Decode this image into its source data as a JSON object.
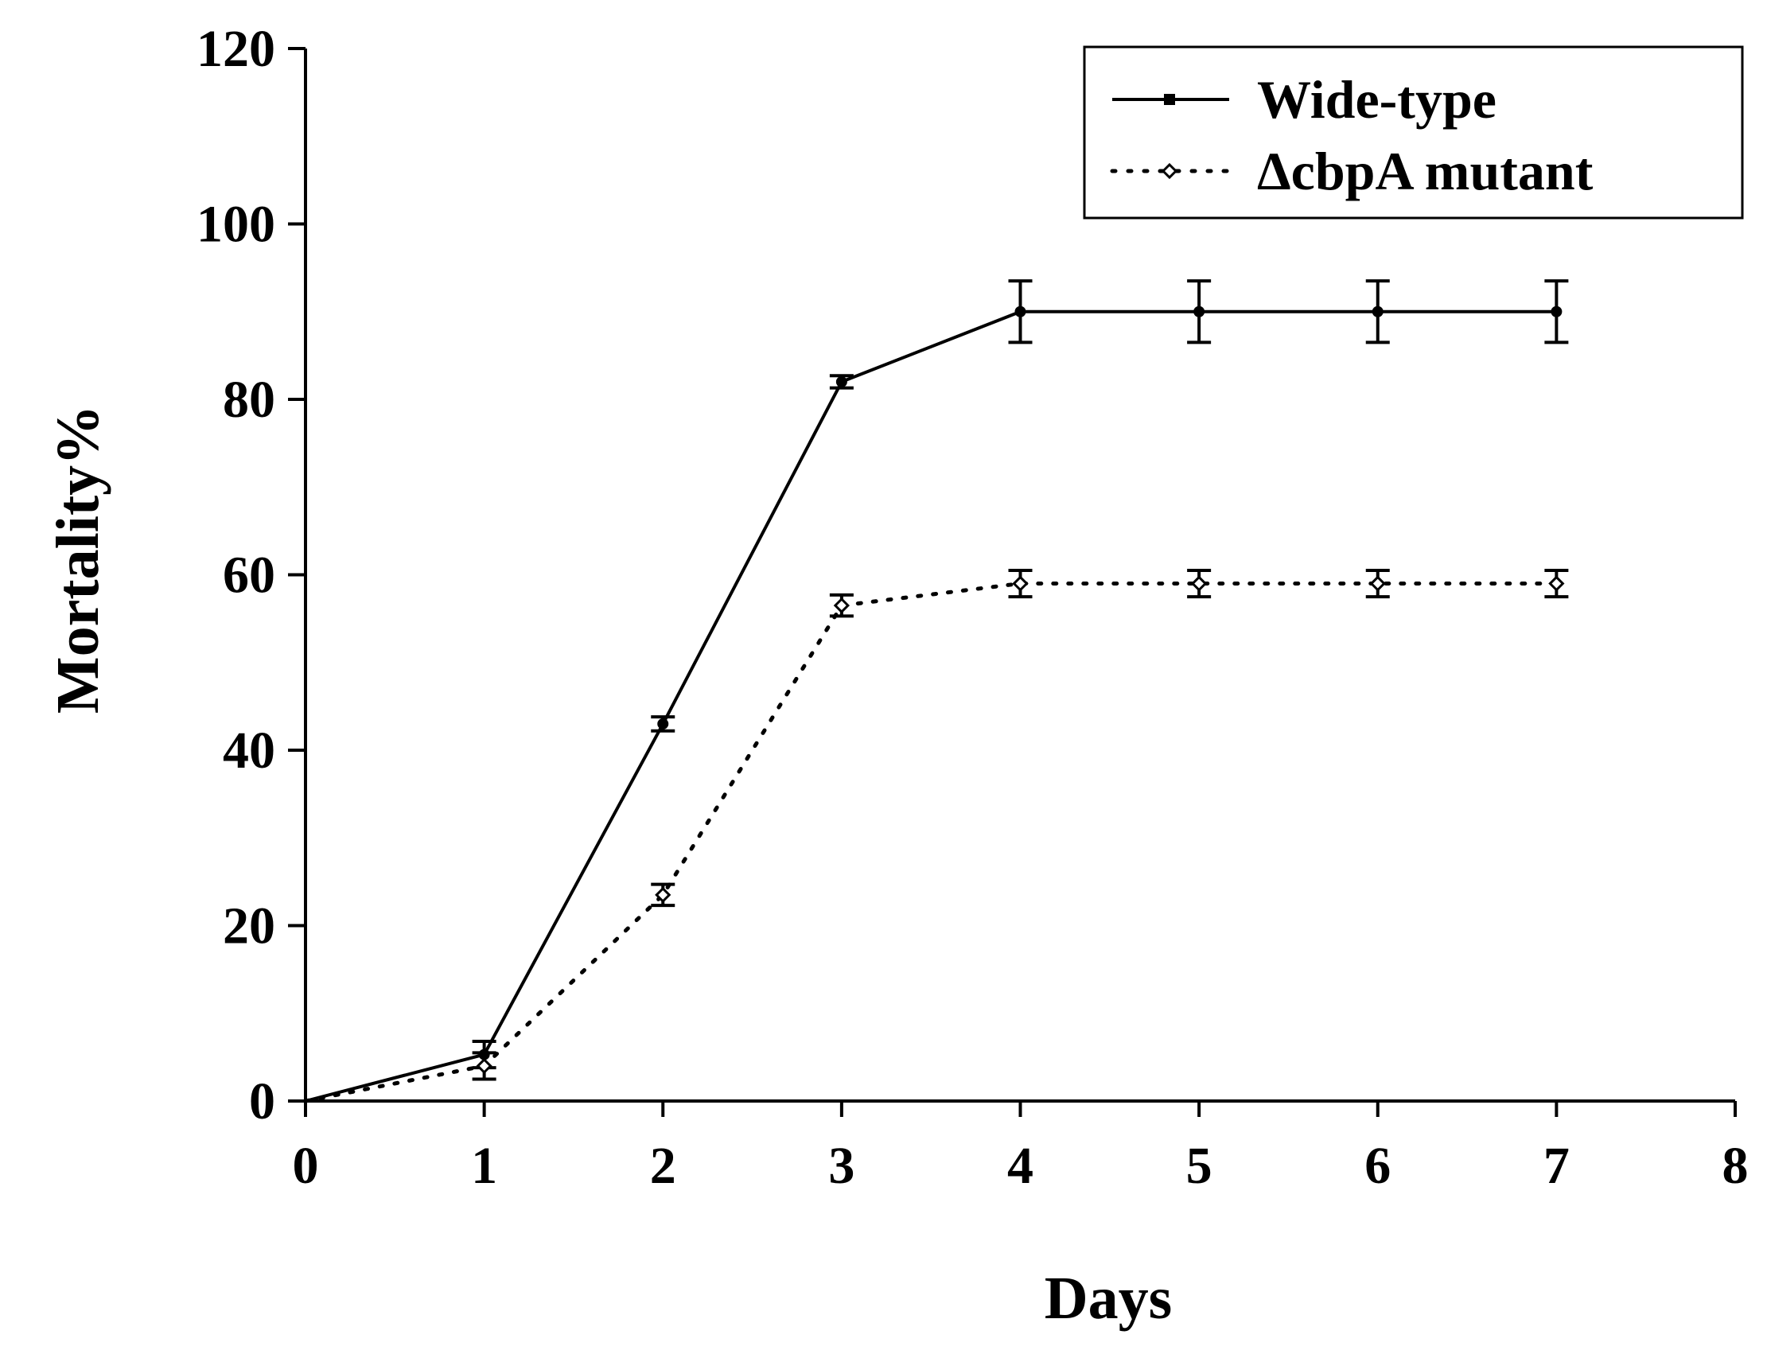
{
  "chart_data": {
    "type": "line",
    "title": "",
    "xlabel": "Days",
    "ylabel": "Mortality%",
    "x": [
      0,
      1,
      2,
      3,
      4,
      5,
      6,
      7
    ],
    "xlim": [
      0,
      8
    ],
    "ylim": [
      0,
      120
    ],
    "x_ticks": [
      "0",
      "1",
      "2",
      "3",
      "4",
      "5",
      "6",
      "7",
      "8"
    ],
    "y_ticks": [
      "0",
      "20",
      "40",
      "60",
      "80",
      "100",
      "120"
    ],
    "grid": false,
    "legend_position": "top-right",
    "series": [
      {
        "name": "Wide-type",
        "line_style": "solid",
        "marker": "filled-square",
        "color": "#000000",
        "values": [
          0,
          5.3,
          43,
          82,
          90,
          90,
          90,
          90
        ],
        "errors": [
          0,
          1.5,
          0.8,
          0.7,
          3.5,
          3.5,
          3.5,
          3.5
        ]
      },
      {
        "name": "ΔcbpA mutant",
        "line_style": "dotted",
        "marker": "open-diamond",
        "color": "#000000",
        "values": [
          0,
          4,
          23.5,
          56.5,
          59,
          59,
          59,
          59
        ],
        "errors": [
          0,
          1.5,
          1.2,
          1.2,
          1.5,
          1.5,
          1.5,
          1.5
        ]
      }
    ]
  }
}
